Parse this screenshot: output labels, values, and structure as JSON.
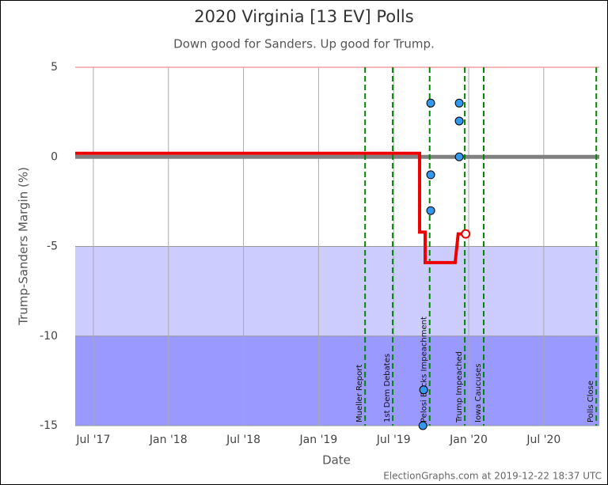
{
  "chart_data": {
    "type": "scatter",
    "title": "2020 Virginia [13 EV] Polls",
    "subtitle": "Down good for Sanders. Up good for Trump.",
    "xlabel": "Date",
    "ylabel": "Trump-Sanders Margin (%)",
    "footer": "ElectionGraphs.com at 2019-12-22 18:37 UTC",
    "xlim": [
      2017.379,
      2020.87
    ],
    "ylim": [
      -15,
      5
    ],
    "xticks": [
      {
        "value": 2017.5,
        "label": "Jul '17"
      },
      {
        "value": 2018.0,
        "label": "Jan '18"
      },
      {
        "value": 2018.5,
        "label": "Jul '18"
      },
      {
        "value": 2019.0,
        "label": "Jan '19"
      },
      {
        "value": 2019.5,
        "label": "Jul '19"
      },
      {
        "value": 2020.0,
        "label": "Jan '20"
      },
      {
        "value": 2020.5,
        "label": "Jul '20"
      }
    ],
    "yticks": [
      5,
      0,
      -5,
      -10,
      -15
    ],
    "grid": true,
    "bands": [
      {
        "from": -5,
        "to": -10,
        "color": "#ccccff"
      },
      {
        "from": -10,
        "to": -15,
        "color": "#9999ff"
      }
    ],
    "reference_lines": [
      {
        "value": 5,
        "color": "#f0a0a0"
      },
      {
        "value": 0,
        "color": "#808080"
      }
    ],
    "series": [
      {
        "type": "step-line",
        "color": "#ee0000",
        "x": [
          2017.379,
          2019.673,
          2019.673,
          2019.71,
          2019.71,
          2019.91,
          2019.93,
          2019.98
        ],
        "values": [
          0.2,
          0.2,
          -4.2,
          -4.2,
          -5.9,
          -5.9,
          -4.3,
          -4.3
        ]
      },
      {
        "type": "scatter",
        "color": "#3399ee",
        "x": [
          2019.747,
          2019.747,
          2019.747,
          2019.937,
          2019.937,
          2019.937,
          2019.7,
          2019.695
        ],
        "values": [
          3,
          -1,
          -3,
          3,
          2,
          0,
          -13,
          -15
        ]
      }
    ],
    "events": [
      {
        "x": 2019.31,
        "label": "Mueller Report"
      },
      {
        "x": 2019.494,
        "label": "1st Dem Debates"
      },
      {
        "x": 2019.74,
        "label": "Pelosi Backs Impeachment"
      },
      {
        "x": 2019.974,
        "label": "Trump Impeached"
      },
      {
        "x": 2020.1,
        "label": "Iowa Caucuses"
      },
      {
        "x": 2020.85,
        "label": "Polls Close"
      }
    ],
    "event_color": "#008800"
  }
}
